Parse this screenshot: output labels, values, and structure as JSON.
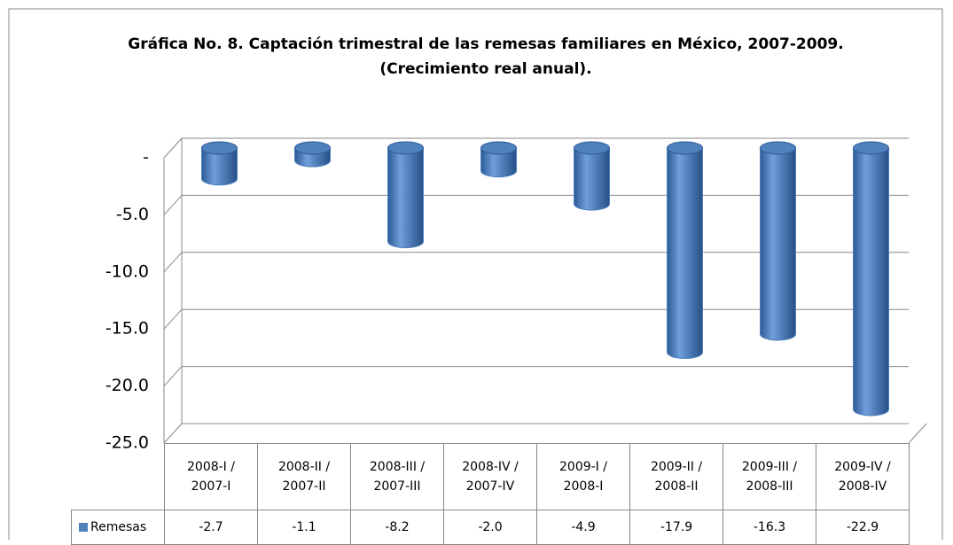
{
  "chart_data": {
    "type": "bar",
    "title": "Gráfica No. 8. Captación trimestral de las remesas familiares en México, 2007-2009.",
    "subtitle": "(Crecimiento real anual).",
    "categories": [
      "2008-I / 2007-I",
      "2008-II / 2007-II",
      "2008-III / 2007-III",
      "2008-IV / 2007-IV",
      "2009-I / 2008-I",
      "2009-II / 2008-II",
      "2009-III / 2008-III",
      "2009-IV / 2008-IV"
    ],
    "series": [
      {
        "name": "Remesas",
        "color": "#4f81bd",
        "values": [
          -2.7,
          -1.1,
          -8.2,
          -2.0,
          -4.9,
          -17.9,
          -16.3,
          -22.9
        ],
        "value_labels": [
          "-2.7",
          "-1.1",
          "-8.2",
          "-2.0",
          "-4.9",
          "-17.9",
          "-16.3",
          "-22.9"
        ]
      }
    ],
    "ylim": [
      -25,
      0
    ],
    "yticks": [
      {
        "value": 0,
        "label": "-"
      },
      {
        "value": -5,
        "label": "-5.0"
      },
      {
        "value": -10,
        "label": "-10.0"
      },
      {
        "value": -15,
        "label": "-15.0"
      },
      {
        "value": -20,
        "label": "-20.0"
      },
      {
        "value": -25,
        "label": "-25.0"
      }
    ],
    "grid": true
  }
}
